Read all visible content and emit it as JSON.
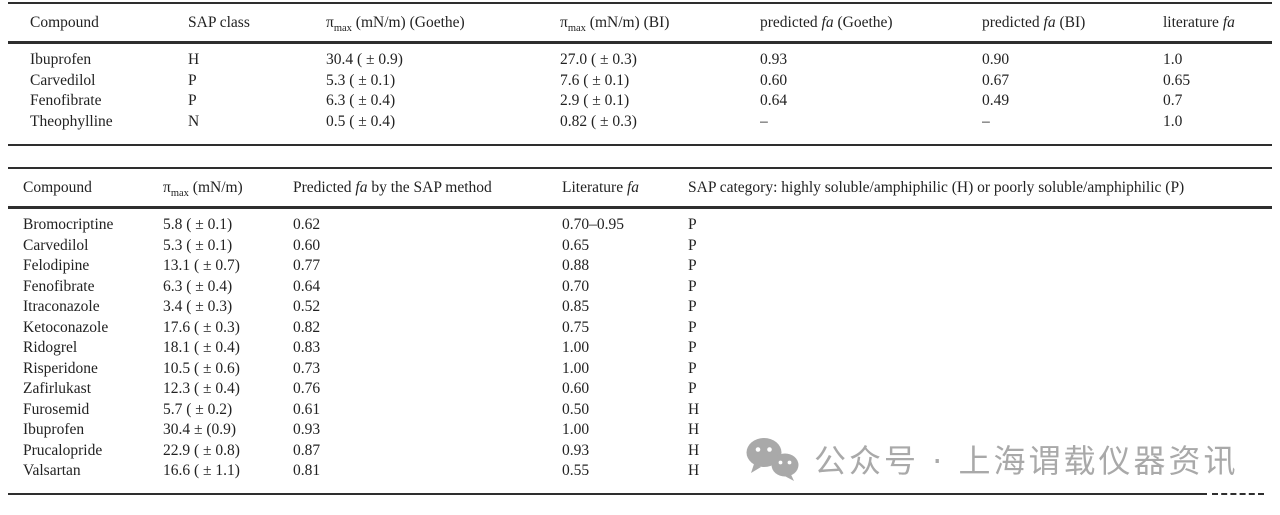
{
  "colors": {
    "text": "#222222",
    "rule": "#2e2e2e",
    "watermark": "#a9a9a9",
    "background": "#ffffff"
  },
  "table1": {
    "headers": {
      "compound": "Compound",
      "sap_class": "SAP class",
      "pi_symbol": "π",
      "pi_sub": "max",
      "pi_goethe_rest": " (mN/m) (Goethe)",
      "pi_bi_rest": " (mN/m) (BI)",
      "predicted_prefix": "predicted ",
      "fa": "fa",
      "goethe_suffix": " (Goethe)",
      "bi_suffix": " (BI)",
      "literature_prefix": "literature "
    },
    "rows": [
      [
        "Ibuprofen",
        "H",
        "30.4 ( ± 0.9)",
        "27.0 ( ± 0.3)",
        "0.93",
        "0.90",
        "1.0"
      ],
      [
        "Carvedilol",
        "P",
        "5.3 ( ± 0.1)",
        "7.6 ( ± 0.1)",
        "0.60",
        "0.67",
        "0.65"
      ],
      [
        "Fenofibrate",
        "P",
        "6.3 ( ± 0.4)",
        "2.9 ( ± 0.1)",
        "0.64",
        "0.49",
        "0.7"
      ],
      [
        "Theophylline",
        "N",
        "0.5 ( ± 0.4)",
        "0.82 ( ± 0.3)",
        "–",
        "–",
        "1.0"
      ]
    ]
  },
  "table2": {
    "headers": {
      "compound": "Compound",
      "pi_symbol": "π",
      "pi_sub": "max",
      "pi_rest": " (mN/m)",
      "predicted_prefix": "Predicted ",
      "fa": "fa",
      "predicted_suffix": " by the SAP method",
      "literature_prefix": "Literature ",
      "sap_category": "SAP category: highly soluble/amphiphilic (H) or poorly soluble/amphiphilic (P)"
    },
    "rows": [
      [
        "Bromocriptine",
        "5.8 ( ± 0.1)",
        "0.62",
        "0.70–0.95",
        "P"
      ],
      [
        "Carvedilol",
        "5.3 ( ± 0.1)",
        "0.60",
        "0.65",
        "P"
      ],
      [
        "Felodipine",
        "13.1 ( ± 0.7)",
        "0.77",
        "0.88",
        "P"
      ],
      [
        "Fenofibrate",
        "6.3 ( ± 0.4)",
        "0.64",
        "0.70",
        "P"
      ],
      [
        "Itraconazole",
        "3.4 ( ± 0.3)",
        "0.52",
        "0.85",
        "P"
      ],
      [
        "Ketoconazole",
        "17.6 ( ± 0.3)",
        "0.82",
        "0.75",
        "P"
      ],
      [
        "Ridogrel",
        "18.1 ( ± 0.4)",
        "0.83",
        "1.00",
        "P"
      ],
      [
        "Risperidone",
        "10.5 ( ± 0.6)",
        "0.73",
        "1.00",
        "P"
      ],
      [
        "Zafirlukast",
        "12.3 ( ± 0.4)",
        "0.76",
        "0.60",
        "P"
      ],
      [
        "Furosemid",
        "5.7 ( ± 0.2)",
        "0.61",
        "0.50",
        "H"
      ],
      [
        "Ibuprofen",
        "30.4 ± (0.9)",
        "0.93",
        "1.00",
        "H"
      ],
      [
        "Prucalopride",
        "22.9 ( ± 0.8)",
        "0.87",
        "0.93",
        "H"
      ],
      [
        "Valsartan",
        "16.6 ( ± 1.1)",
        "0.81",
        "0.55",
        "H"
      ]
    ]
  },
  "watermark": {
    "icon": "wechat-icon",
    "text": "公众号 · 上海谓载仪器资讯"
  }
}
